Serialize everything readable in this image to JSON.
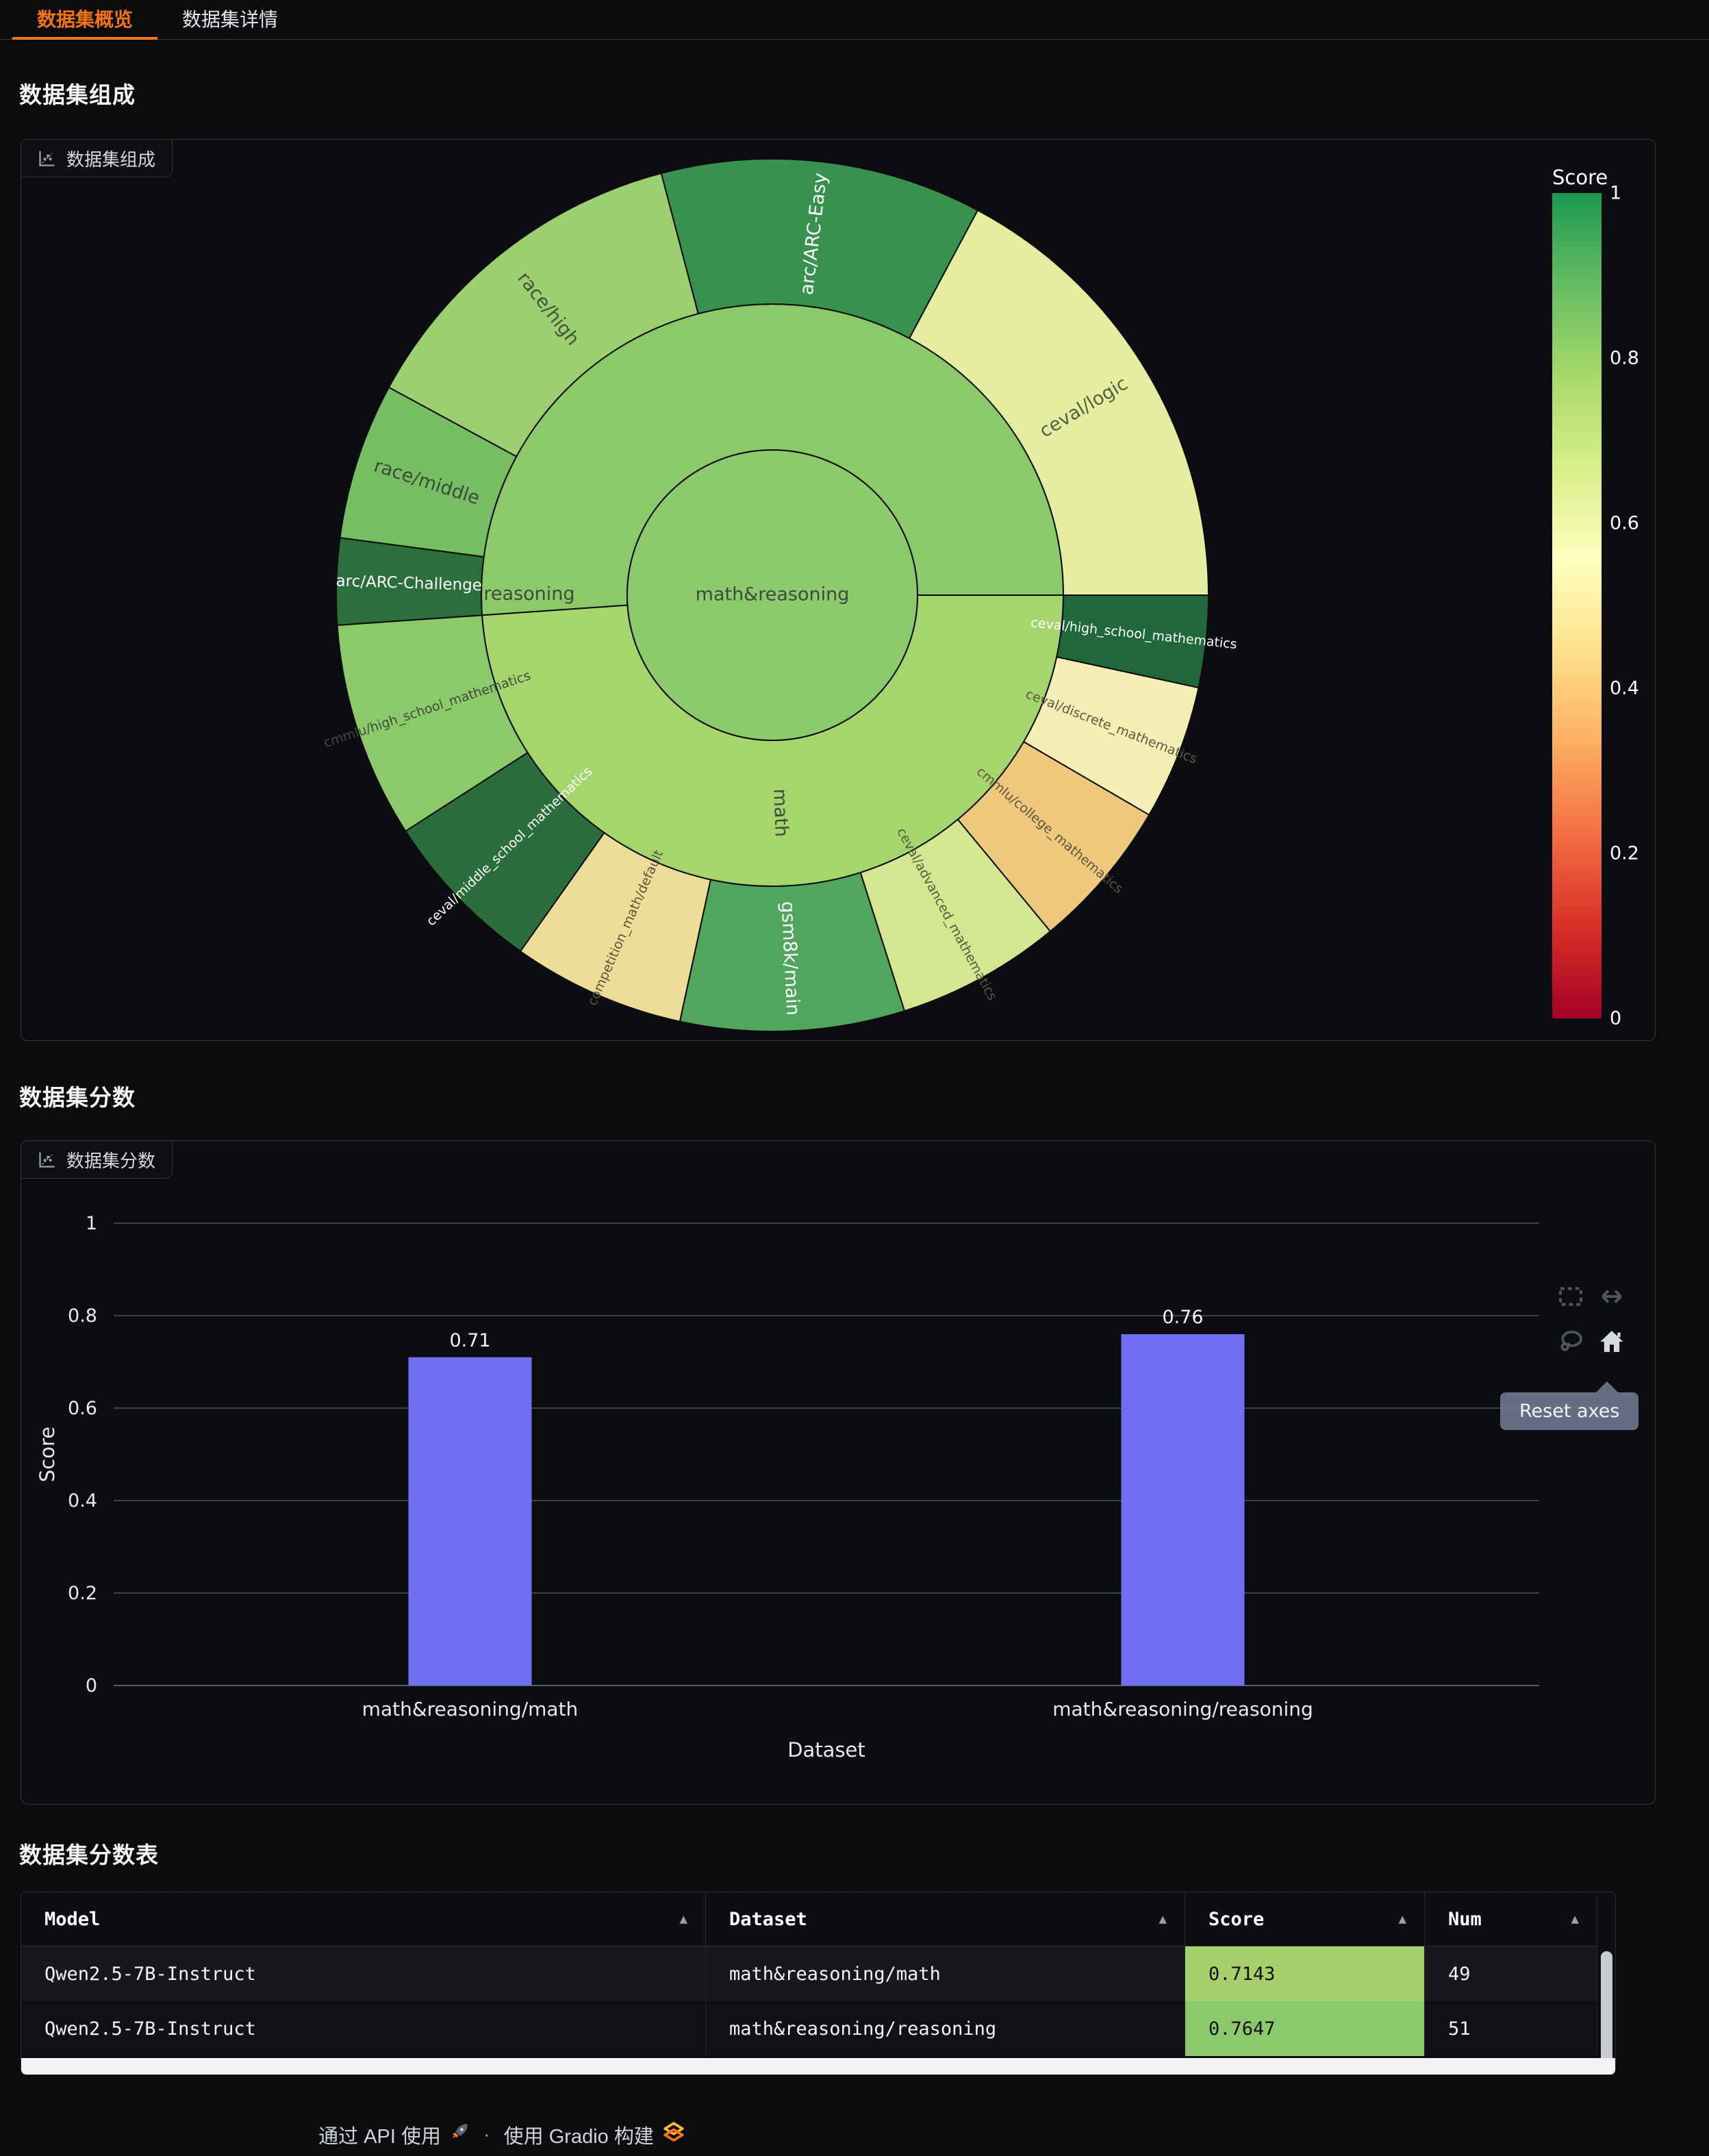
{
  "tabs": [
    {
      "label": "数据集概览",
      "active": true
    },
    {
      "label": "数据集详情",
      "active": false
    }
  ],
  "sections": {
    "composition_title": "数据集组成",
    "scores_title": "数据集分数",
    "table_title": "数据集分数表"
  },
  "composition_panel": {
    "label": "数据集组成"
  },
  "scores_panel": {
    "label": "数据集分数"
  },
  "colorbar": {
    "title": "Score",
    "ticks": [
      "1",
      "0.8",
      "0.6",
      "0.4",
      "0.2",
      "0"
    ],
    "gradient_top_to_bottom": [
      "#1a9850",
      "#66bd63",
      "#a6d96a",
      "#d9ef8b",
      "#ffffbf",
      "#fee08b",
      "#fdae61",
      "#f46d43",
      "#d73027",
      "#a50026"
    ]
  },
  "modebar": {
    "tooltip": "Reset axes",
    "icons": [
      "box-select",
      "autoscale",
      "lasso-select",
      "reset-axes"
    ]
  },
  "chart_data": [
    {
      "type": "sunburst",
      "title": "数据集组成",
      "colorscale": "RdYlGn",
      "color_meaning": "Score",
      "center": {
        "label": "math&reasoning",
        "color": "#8dca6d",
        "text_color": "#3d4a3c"
      },
      "middle": [
        {
          "label": "reasoning",
          "frac": 0.511,
          "score": 0.7647,
          "color": "#8cc968",
          "text_color": "#3d4a3c",
          "label_at": 0.978,
          "label_r": 355
        },
        {
          "label": "math",
          "frac": 0.489,
          "score": 0.7143,
          "color": "#a6d46d",
          "text_color": "#3d4a3c",
          "label_at": 0.5,
          "label_r": 318
        }
      ],
      "outer": [
        {
          "label": "ceval/logic",
          "frac": 0.172,
          "score_est": 0.62,
          "color": "#e4eda0",
          "text_color": "#565e41"
        },
        {
          "label": "arc/ARC-Easy",
          "frac": 0.119,
          "score_est": 0.9,
          "color": "#38914f",
          "text_color": "#ffffff"
        },
        {
          "label": "race/high",
          "frac": 0.13,
          "score_est": 0.78,
          "color": "#9bcf70",
          "text_color": "#47503c"
        },
        {
          "label": "race/middle",
          "frac": 0.058,
          "score_est": 0.82,
          "color": "#77bd62",
          "text_color": "#3c4a38"
        },
        {
          "label": "arc/ARC-Challenge",
          "frac": 0.032,
          "score_est": 0.93,
          "color": "#2c6e3c",
          "text_color": "#ffffff"
        },
        {
          "label": "cmmlu/high_school_mathematics",
          "frac": 0.08,
          "score_est": 0.77,
          "color": "#8cc96a",
          "text_color": "#3e4a3a"
        },
        {
          "label": "ceval/middle_school_mathematics",
          "frac": 0.061,
          "score_est": 0.95,
          "color": "#2b6e3b",
          "text_color": "#ffffff"
        },
        {
          "label": "competition_math/default",
          "frac": 0.064,
          "score_est": 0.45,
          "color": "#eedd96",
          "text_color": "#5a553b"
        },
        {
          "label": "gsm8k/main",
          "frac": 0.083,
          "score_est": 0.86,
          "color": "#51a55d",
          "text_color": "#ffffff"
        },
        {
          "label": "ceval/advanced_mathematics",
          "frac": 0.061,
          "score_est": 0.67,
          "color": "#d4e690",
          "text_color": "#545c3c"
        },
        {
          "label": "cmmlu/college_mathematics",
          "frac": 0.056,
          "score_est": 0.42,
          "color": "#eec97d",
          "text_color": "#5d5440"
        },
        {
          "label": "ceval/discrete_mathematics",
          "frac": 0.05,
          "score_est": 0.5,
          "color": "#f5efb6",
          "text_color": "#5c593f"
        },
        {
          "label": "ceval/high_school_mathematics",
          "frac": 0.034,
          "score_est": 0.96,
          "color": "#20683a",
          "text_color": "#ffffff"
        }
      ]
    },
    {
      "type": "bar",
      "title": "数据集分数",
      "categories": [
        "math&reasoning/math",
        "math&reasoning/reasoning"
      ],
      "values": [
        0.71,
        0.76
      ],
      "bar_labels": [
        "0.71",
        "0.76"
      ],
      "xlabel": "Dataset",
      "ylabel": "Score",
      "ylim": [
        0,
        1
      ],
      "yticks": [
        0,
        0.2,
        0.4,
        0.6,
        0.8,
        1
      ],
      "bar_color": "#6e6ef1",
      "grid": true,
      "legend": "none"
    }
  ],
  "table": {
    "columns": [
      "Model",
      "Dataset",
      "Score",
      "Num"
    ],
    "sort_icon": "▲",
    "rows": [
      {
        "model": "Qwen2.5-7B-Instruct",
        "dataset": "math&reasoning/math",
        "score": "0.7143",
        "num": "49",
        "score_bg": "#a7d06d"
      },
      {
        "model": "Qwen2.5-7B-Instruct",
        "dataset": "math&reasoning/reasoning",
        "score": "0.7647",
        "num": "51",
        "score_bg": "#8cc96d"
      }
    ]
  },
  "footer": {
    "api_text": "通过 API 使用",
    "separator": "·",
    "gradio_text": "使用 Gradio 构建"
  }
}
